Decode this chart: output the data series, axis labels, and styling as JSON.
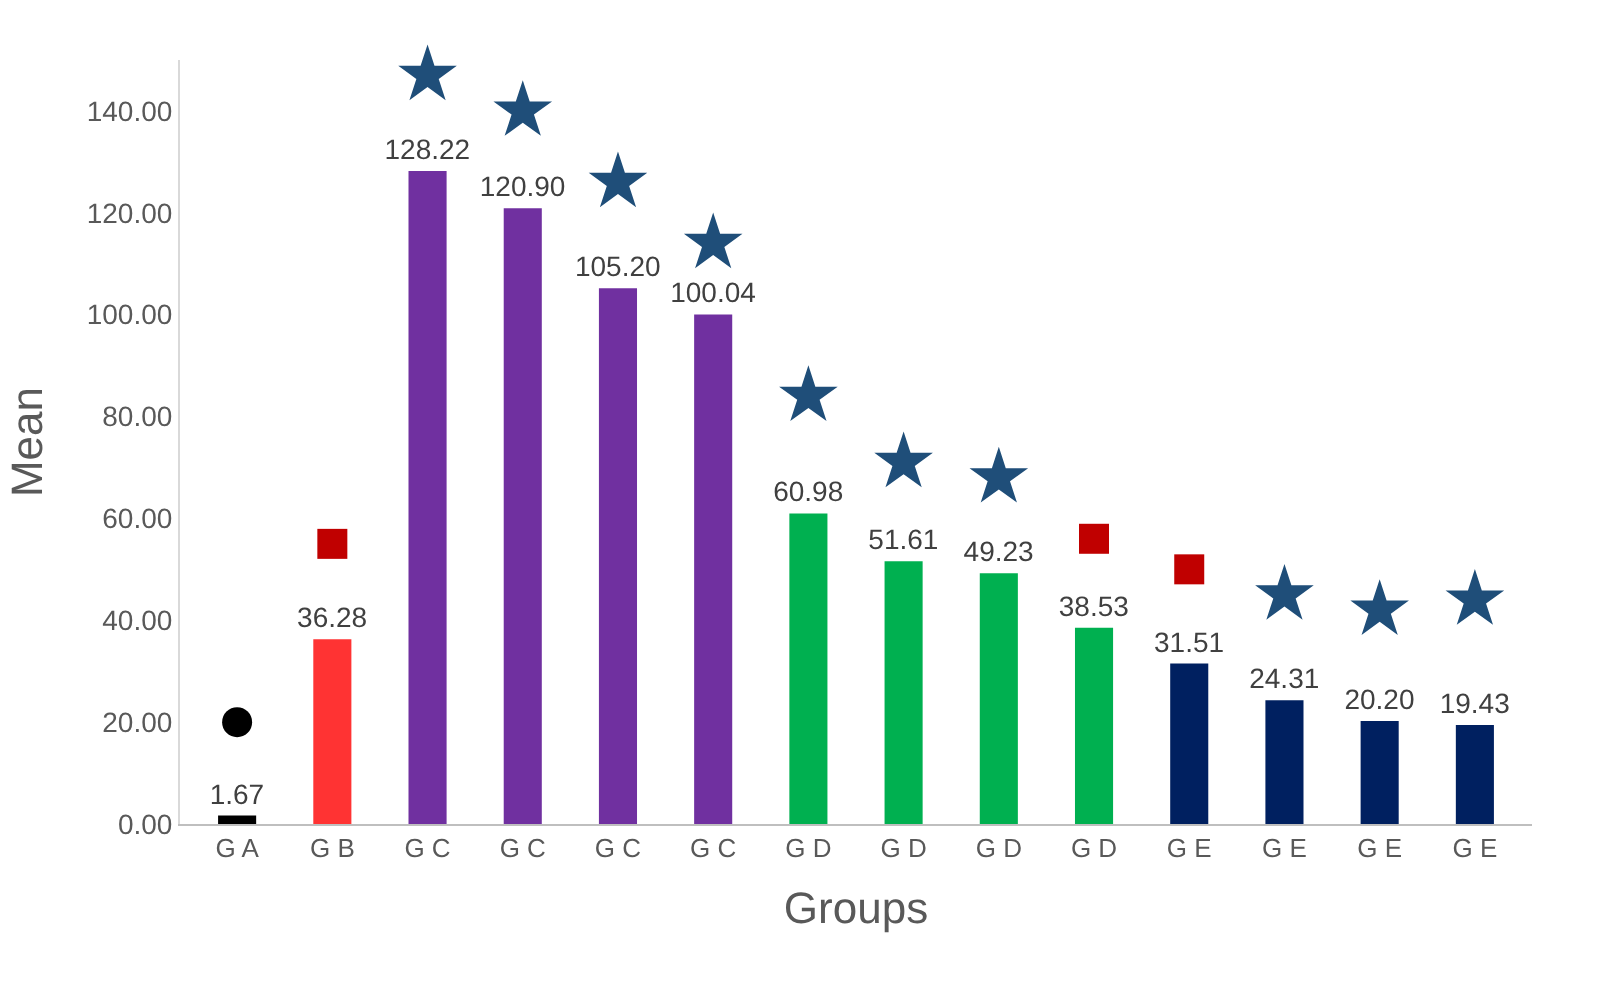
{
  "chart_data": {
    "type": "bar",
    "xlabel": "Groups",
    "ylabel": "Mean",
    "categories": [
      "G A",
      "G B",
      "G C",
      "G C",
      "G C",
      "G C",
      "G D",
      "G D",
      "G D",
      "G D",
      "G E",
      "G E",
      "G E",
      "G E"
    ],
    "series": [
      {
        "values": [
          1.67,
          36.28,
          128.22,
          120.9,
          105.2,
          100.04,
          60.98,
          51.61,
          49.23,
          38.53,
          31.51,
          24.31,
          20.2,
          19.43
        ],
        "colors": [
          "#000000",
          "#ff3333",
          "#7030a0",
          "#7030a0",
          "#7030a0",
          "#7030a0",
          "#00b050",
          "#00b050",
          "#00b050",
          "#00b050",
          "#002060",
          "#002060",
          "#002060",
          "#002060"
        ],
        "value_labels": [
          "1.67",
          "36.28",
          "128.22",
          "120.90",
          "105.20",
          "100.04",
          "60.98",
          "51.61",
          "49.23",
          "38.53",
          "31.51",
          "24.31",
          "20.20",
          "19.43"
        ]
      },
      {
        "type": "scatter",
        "marker": "circle",
        "color": "#000000",
        "values": [
          20,
          null,
          null,
          null,
          null,
          null,
          null,
          null,
          null,
          null,
          null,
          null,
          null,
          null
        ]
      },
      {
        "type": "scatter",
        "marker": "square",
        "color": "#c00000",
        "values": [
          null,
          55,
          null,
          null,
          null,
          null,
          null,
          null,
          null,
          56,
          50,
          null,
          null,
          null
        ]
      },
      {
        "type": "scatter",
        "marker": "star",
        "color": "#1f4e79",
        "values": [
          null,
          null,
          147,
          140,
          126,
          114,
          84,
          71,
          68,
          null,
          null,
          45,
          42,
          44
        ]
      }
    ],
    "ylim": [
      0,
      150
    ],
    "yticks": [
      {
        "value": 0,
        "label": "0.00"
      },
      {
        "value": 20,
        "label": "20.00"
      },
      {
        "value": 40,
        "label": "40.00"
      },
      {
        "value": 60,
        "label": "60.00"
      },
      {
        "value": 80,
        "label": "80.00"
      },
      {
        "value": 100,
        "label": "100.00"
      },
      {
        "value": 120,
        "label": "120.00"
      },
      {
        "value": 140,
        "label": "140.00"
      }
    ]
  }
}
